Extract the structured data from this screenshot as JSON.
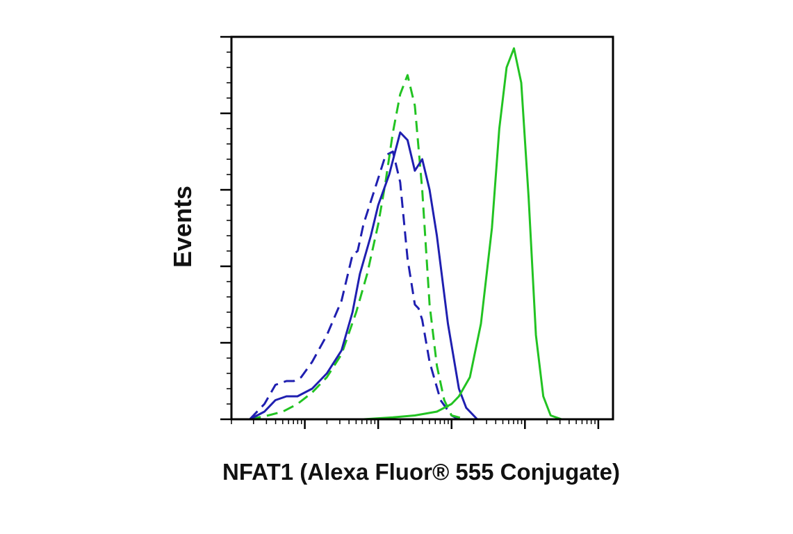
{
  "chart_data": {
    "type": "line",
    "title": "",
    "xlabel": "NFAT1 (Alexa Fluor® 555 Conjugate)",
    "ylabel": "Events",
    "x_scale": "log",
    "xlim": [
      0,
      5.2
    ],
    "ylim": [
      0,
      100
    ],
    "grid": false,
    "legend": "none",
    "x_major_ticks": [
      1,
      2,
      3,
      4,
      5
    ],
    "y_major_ticks": [
      0,
      20,
      40,
      60,
      80,
      100
    ],
    "series": [
      {
        "color": "#1f1fb0",
        "style": "dashed",
        "x": [
          0.25,
          0.45,
          0.6,
          0.75,
          0.85,
          0.95,
          1.1,
          1.3,
          1.5,
          1.65,
          1.72,
          1.8,
          1.9,
          2.0,
          2.1,
          2.2,
          2.3,
          2.4,
          2.5,
          2.55,
          2.6,
          2.7,
          2.85,
          3.0,
          3.1,
          3.3
        ],
        "values": [
          0,
          4,
          9,
          10,
          10,
          11,
          15,
          22,
          31,
          43,
          44,
          51,
          57,
          63,
          69,
          70,
          62,
          42,
          30,
          29,
          26,
          15,
          5,
          1,
          0,
          0
        ]
      },
      {
        "color": "#22c322",
        "style": "dashed",
        "x": [
          0.25,
          0.5,
          0.7,
          0.9,
          1.1,
          1.3,
          1.5,
          1.7,
          1.85,
          2.0,
          2.1,
          2.2,
          2.3,
          2.4,
          2.5,
          2.6,
          2.7,
          2.8,
          2.9,
          3.0,
          3.2,
          3.6
        ],
        "values": [
          0,
          1,
          2,
          4,
          7,
          11,
          17,
          28,
          38,
          51,
          62,
          75,
          85,
          90,
          82,
          60,
          30,
          14,
          5,
          1,
          0,
          0
        ]
      },
      {
        "color": "#1f1fb0",
        "style": "solid",
        "x": [
          0.25,
          0.45,
          0.6,
          0.75,
          0.9,
          1.1,
          1.3,
          1.5,
          1.65,
          1.75,
          1.9,
          2.0,
          2.15,
          2.3,
          2.4,
          2.5,
          2.6,
          2.7,
          2.8,
          2.95,
          3.1,
          3.2,
          3.35,
          3.6
        ],
        "values": [
          0,
          2,
          5,
          6,
          6,
          8,
          12,
          18,
          28,
          38,
          48,
          56,
          64,
          75,
          73,
          65,
          68,
          60,
          48,
          25,
          8,
          3,
          0,
          0
        ]
      },
      {
        "color": "#22c322",
        "style": "solid",
        "x": [
          0.2,
          1.0,
          1.8,
          2.2,
          2.5,
          2.8,
          3.0,
          3.1,
          3.25,
          3.4,
          3.55,
          3.65,
          3.75,
          3.85,
          3.95,
          4.05,
          4.15,
          4.25,
          4.35,
          4.5,
          5.2
        ],
        "values": [
          0,
          0,
          0,
          0.5,
          1,
          2,
          4,
          6,
          11,
          25,
          50,
          76,
          92,
          97,
          88,
          58,
          22,
          6,
          1,
          0,
          0
        ]
      }
    ]
  }
}
